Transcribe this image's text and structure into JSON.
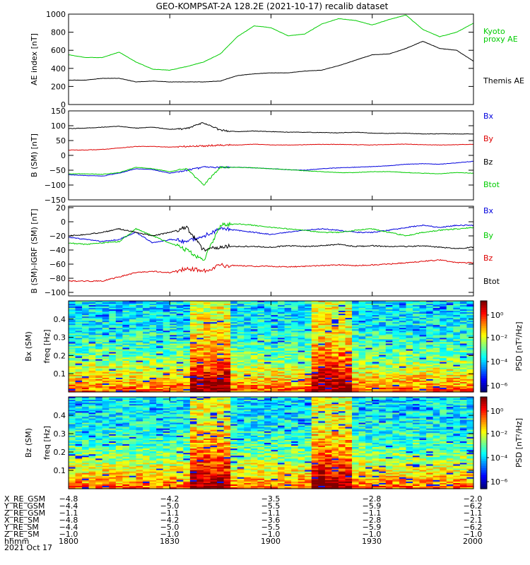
{
  "title": "GEO-KOMPSAT-2A 128.2E (2021-10-17) recalib dataset",
  "colors": {
    "black": "#000000",
    "red": "#dd0000",
    "green": "#00cc00",
    "blue": "#0000dd",
    "kyoto": "#00cc00"
  },
  "chart_data": [
    {
      "type": "line",
      "ylabel": "AE index [nT]",
      "ylim": [
        0,
        1000
      ],
      "yticks": [
        0,
        200,
        400,
        600,
        800,
        1000
      ],
      "xlim": [
        0,
        120
      ],
      "series": [
        {
          "name": "Kyoto proxy AE",
          "legend": [
            "Kyoto",
            "proxy AE"
          ],
          "color": "green",
          "x": [
            0,
            5,
            10,
            15,
            20,
            25,
            30,
            35,
            40,
            45,
            50,
            55,
            60,
            65,
            70,
            75,
            80,
            85,
            90,
            95,
            100,
            105,
            110,
            115,
            120
          ],
          "y": [
            550,
            520,
            520,
            580,
            470,
            390,
            380,
            420,
            470,
            560,
            750,
            870,
            850,
            760,
            780,
            890,
            950,
            930,
            880,
            940,
            990,
            830,
            750,
            800,
            900
          ]
        },
        {
          "name": "Themis AE",
          "legend": [
            "Themis AE"
          ],
          "color": "black",
          "x": [
            0,
            5,
            10,
            15,
            20,
            25,
            30,
            35,
            40,
            45,
            50,
            55,
            60,
            65,
            70,
            75,
            80,
            85,
            90,
            95,
            100,
            105,
            110,
            115,
            120
          ],
          "y": [
            270,
            270,
            290,
            290,
            250,
            260,
            250,
            250,
            250,
            260,
            320,
            340,
            350,
            350,
            370,
            380,
            430,
            490,
            550,
            560,
            620,
            700,
            620,
            600,
            480
          ]
        }
      ]
    },
    {
      "type": "line",
      "ylabel": "B (SM) [nT]",
      "ylim": [
        -150,
        150
      ],
      "yticks": [
        -150,
        -100,
        -50,
        0,
        50,
        100,
        150
      ],
      "xlim": [
        0,
        120
      ],
      "series": [
        {
          "name": "Bx",
          "color": "blue",
          "x": [
            0,
            5,
            10,
            15,
            20,
            25,
            30,
            35,
            40,
            45,
            50,
            55,
            60,
            65,
            70,
            75,
            80,
            85,
            90,
            95,
            100,
            105,
            110,
            115,
            120
          ],
          "y": [
            -65,
            -68,
            -70,
            -60,
            -45,
            -48,
            -60,
            -50,
            -40,
            -40,
            -40,
            -42,
            -45,
            -48,
            -50,
            -45,
            -42,
            -40,
            -38,
            -35,
            -30,
            -28,
            -30,
            -25,
            -20
          ]
        },
        {
          "name": "By",
          "color": "red",
          "x": [
            0,
            5,
            10,
            15,
            20,
            25,
            30,
            35,
            40,
            45,
            50,
            55,
            60,
            65,
            70,
            75,
            80,
            85,
            90,
            95,
            100,
            105,
            110,
            115,
            120
          ],
          "y": [
            18,
            18,
            20,
            25,
            30,
            30,
            28,
            30,
            32,
            35,
            35,
            38,
            35,
            35,
            36,
            37,
            37,
            36,
            35,
            37,
            38,
            36,
            35,
            36,
            37
          ]
        },
        {
          "name": "Bz",
          "color": "black",
          "x": [
            0,
            5,
            10,
            15,
            20,
            25,
            30,
            35,
            40,
            45,
            50,
            55,
            60,
            65,
            70,
            75,
            80,
            85,
            90,
            95,
            100,
            105,
            110,
            115,
            120
          ],
          "y": [
            90,
            92,
            95,
            98,
            92,
            95,
            88,
            90,
            110,
            85,
            80,
            82,
            80,
            78,
            78,
            77,
            76,
            78,
            75,
            74,
            75,
            72,
            73,
            72,
            72
          ]
        },
        {
          "name": "Btot",
          "color": "green",
          "x": [
            0,
            5,
            10,
            15,
            20,
            25,
            30,
            35,
            40,
            45,
            50,
            55,
            60,
            65,
            70,
            75,
            80,
            85,
            90,
            95,
            100,
            105,
            110,
            115,
            120
          ],
          "y": [
            -62,
            -62,
            -64,
            -58,
            -40,
            -45,
            -55,
            -45,
            -100,
            -40,
            -40,
            -42,
            -45,
            -48,
            -52,
            -55,
            -58,
            -58,
            -55,
            -55,
            -58,
            -60,
            -62,
            -58,
            -60
          ]
        }
      ]
    },
    {
      "type": "line",
      "ylabel": "B (SM)-IGRF (SM) [nT]",
      "ylim": [
        -105,
        22
      ],
      "yticks": [
        -100,
        -80,
        -60,
        -40,
        -20,
        0,
        20
      ],
      "xlim": [
        0,
        120
      ],
      "series": [
        {
          "name": "Bx",
          "color": "blue",
          "x": [
            0,
            5,
            10,
            15,
            20,
            25,
            30,
            35,
            40,
            45,
            50,
            55,
            60,
            65,
            70,
            75,
            80,
            85,
            90,
            95,
            100,
            105,
            110,
            115,
            120
          ],
          "y": [
            -22,
            -25,
            -28,
            -25,
            -15,
            -30,
            -25,
            -28,
            -20,
            -10,
            -12,
            -15,
            -18,
            -15,
            -12,
            -10,
            -12,
            -15,
            -15,
            -12,
            -8,
            -5,
            -8,
            -5,
            -5
          ]
        },
        {
          "name": "By",
          "color": "green",
          "x": [
            0,
            5,
            10,
            15,
            20,
            25,
            30,
            35,
            40,
            45,
            50,
            55,
            60,
            65,
            70,
            75,
            80,
            85,
            90,
            95,
            100,
            105,
            110,
            115,
            120
          ],
          "y": [
            -30,
            -32,
            -30,
            -28,
            -10,
            -20,
            -30,
            -40,
            -55,
            -5,
            -3,
            -5,
            -8,
            -10,
            -12,
            -15,
            -15,
            -12,
            -10,
            -15,
            -20,
            -15,
            -12,
            -10,
            -8
          ]
        },
        {
          "name": "Bz",
          "color": "red",
          "x": [
            0,
            5,
            10,
            15,
            20,
            25,
            30,
            35,
            40,
            45,
            50,
            55,
            60,
            65,
            70,
            75,
            80,
            85,
            90,
            95,
            100,
            105,
            110,
            115,
            120
          ],
          "y": [
            -84,
            -84,
            -84,
            -78,
            -72,
            -70,
            -72,
            -66,
            -70,
            -62,
            -62,
            -63,
            -63,
            -64,
            -63,
            -62,
            -61,
            -62,
            -61,
            -60,
            -58,
            -56,
            -54,
            -58,
            -58
          ]
        },
        {
          "name": "Btot",
          "color": "black",
          "x": [
            0,
            5,
            10,
            15,
            20,
            25,
            30,
            35,
            40,
            45,
            50,
            55,
            60,
            65,
            70,
            75,
            80,
            85,
            90,
            95,
            100,
            105,
            110,
            115,
            120
          ],
          "y": [
            -20,
            -18,
            -15,
            -10,
            -15,
            -20,
            -15,
            -8,
            -40,
            -35,
            -35,
            -35,
            -36,
            -34,
            -35,
            -34,
            -32,
            -35,
            -34,
            -35,
            -35,
            -34,
            -36,
            -38,
            -36
          ]
        }
      ]
    },
    {
      "type": "heatmap",
      "ylabel": "Bx (SM)",
      "ylabel2": "freq [Hz]",
      "ylim": [
        0,
        0.5
      ],
      "yticks": [
        0.1,
        0.2,
        0.3,
        0.4
      ],
      "colorbar": {
        "label": "PSD [nT²/Hz]",
        "ticks": [
          "10⁰",
          "10⁻²",
          "10⁻⁴",
          "10⁻⁶"
        ]
      },
      "intense_columns": [
        6,
        7,
        12,
        13
      ],
      "seed": 7
    },
    {
      "type": "heatmap",
      "ylabel": "Bz (SM)",
      "ylabel2": "freq [Hz]",
      "ylim": [
        0,
        0.5
      ],
      "yticks": [
        0.1,
        0.2,
        0.3,
        0.4
      ],
      "colorbar": {
        "label": "PSD [nT²/Hz]",
        "ticks": [
          "10⁰",
          "10⁻²",
          "10⁻⁴",
          "10⁻⁶"
        ]
      },
      "intense_columns": [
        6,
        7,
        12,
        13
      ],
      "seed": 19
    }
  ],
  "ephemeris": {
    "rows": [
      {
        "label": "X_RE_GSM",
        "values": [
          "-4.8",
          "-4.2",
          "-3.5",
          "-2.8",
          "-2.0"
        ]
      },
      {
        "label": "Y_RE_GSM",
        "values": [
          "-4.4",
          "-5.0",
          "-5.5",
          "-5.9",
          "-6.2"
        ]
      },
      {
        "label": "Z_RE_GSM",
        "values": [
          "-1.1",
          "-1.1",
          "-1.1",
          "-1.1",
          "-1.1"
        ]
      },
      {
        "label": "X_RE_SM",
        "values": [
          "-4.8",
          "-4.2",
          "-3.6",
          "-2.8",
          "-2.1"
        ]
      },
      {
        "label": "Y_RE_SM",
        "values": [
          "-4.4",
          "-5.0",
          "-5.5",
          "-5.9",
          "-6.2"
        ]
      },
      {
        "label": "Z_RE_SM",
        "values": [
          "-1.0",
          "-1.0",
          "-1.0",
          "-1.0",
          "-1.0"
        ]
      },
      {
        "label": "hhmm",
        "values": [
          "1800",
          "1830",
          "1900",
          "1930",
          "2000"
        ]
      }
    ],
    "date": "2021 Oct 17"
  }
}
